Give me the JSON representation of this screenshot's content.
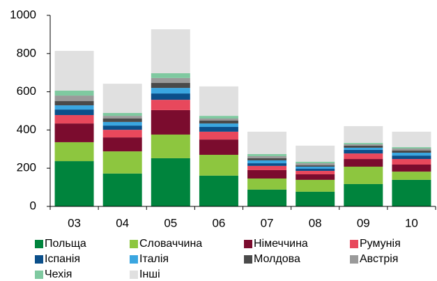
{
  "chart_data": {
    "type": "stacked_bar",
    "categories": [
      "03",
      "04",
      "05",
      "06",
      "07",
      "08",
      "09",
      "10"
    ],
    "ylim": [
      0,
      1000
    ],
    "yticks": [
      0,
      200,
      400,
      600,
      800,
      1000
    ],
    "series": [
      {
        "name": "Польща",
        "color": "#00843d",
        "values": [
          237,
          172,
          252,
          161,
          88,
          77,
          117,
          139
        ]
      },
      {
        "name": "Словаччина",
        "color": "#8dc63f",
        "values": [
          99,
          116,
          124,
          109,
          58,
          62,
          91,
          43
        ]
      },
      {
        "name": "Німеччина",
        "color": "#7b0c2e",
        "values": [
          98,
          73,
          128,
          80,
          44,
          29,
          40,
          37
        ]
      },
      {
        "name": "Румунія",
        "color": "#e8485c",
        "values": [
          44,
          40,
          54,
          41,
          22,
          18,
          29,
          29
        ]
      },
      {
        "name": "Іспанія",
        "color": "#0b4f8a",
        "values": [
          29,
          22,
          33,
          25,
          14,
          11,
          19,
          18
        ]
      },
      {
        "name": "Італія",
        "color": "#3aa6e0",
        "values": [
          22,
          19,
          29,
          18,
          15,
          11,
          11,
          15
        ]
      },
      {
        "name": "Молдова",
        "color": "#4a4a4a",
        "values": [
          22,
          18,
          26,
          15,
          11,
          7,
          11,
          11
        ]
      },
      {
        "name": "Австрія",
        "color": "#9a9a9a",
        "values": [
          29,
          14,
          26,
          11,
          11,
          11,
          7,
          11
        ]
      },
      {
        "name": "Чехія",
        "color": "#7fc9a0",
        "values": [
          26,
          15,
          25,
          14,
          11,
          8,
          7,
          7
        ]
      },
      {
        "name": "Інші",
        "color": "#e0e0e0",
        "values": [
          208,
          153,
          230,
          154,
          117,
          84,
          88,
          81
        ]
      }
    ]
  }
}
